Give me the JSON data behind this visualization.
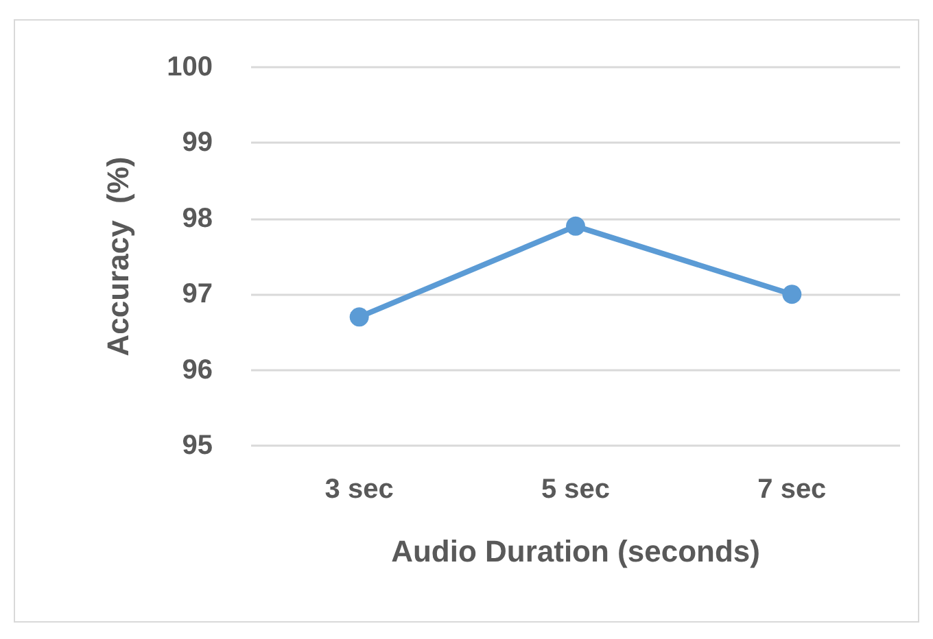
{
  "chart_data": {
    "type": "line",
    "categories": [
      "3 sec",
      "5 sec",
      "7 sec"
    ],
    "series": [
      {
        "color": "#5b9bd5",
        "values": [
          96.7,
          97.9,
          97.0
        ]
      }
    ],
    "xlabel": "Audio Duration (seconds)",
    "ylabel": "Accuracy  (%)",
    "ylim": [
      95,
      100
    ],
    "yticks": [
      95,
      96,
      97,
      98,
      99,
      100
    ],
    "grid": "y",
    "marker": "circle",
    "line_style": "solid"
  }
}
